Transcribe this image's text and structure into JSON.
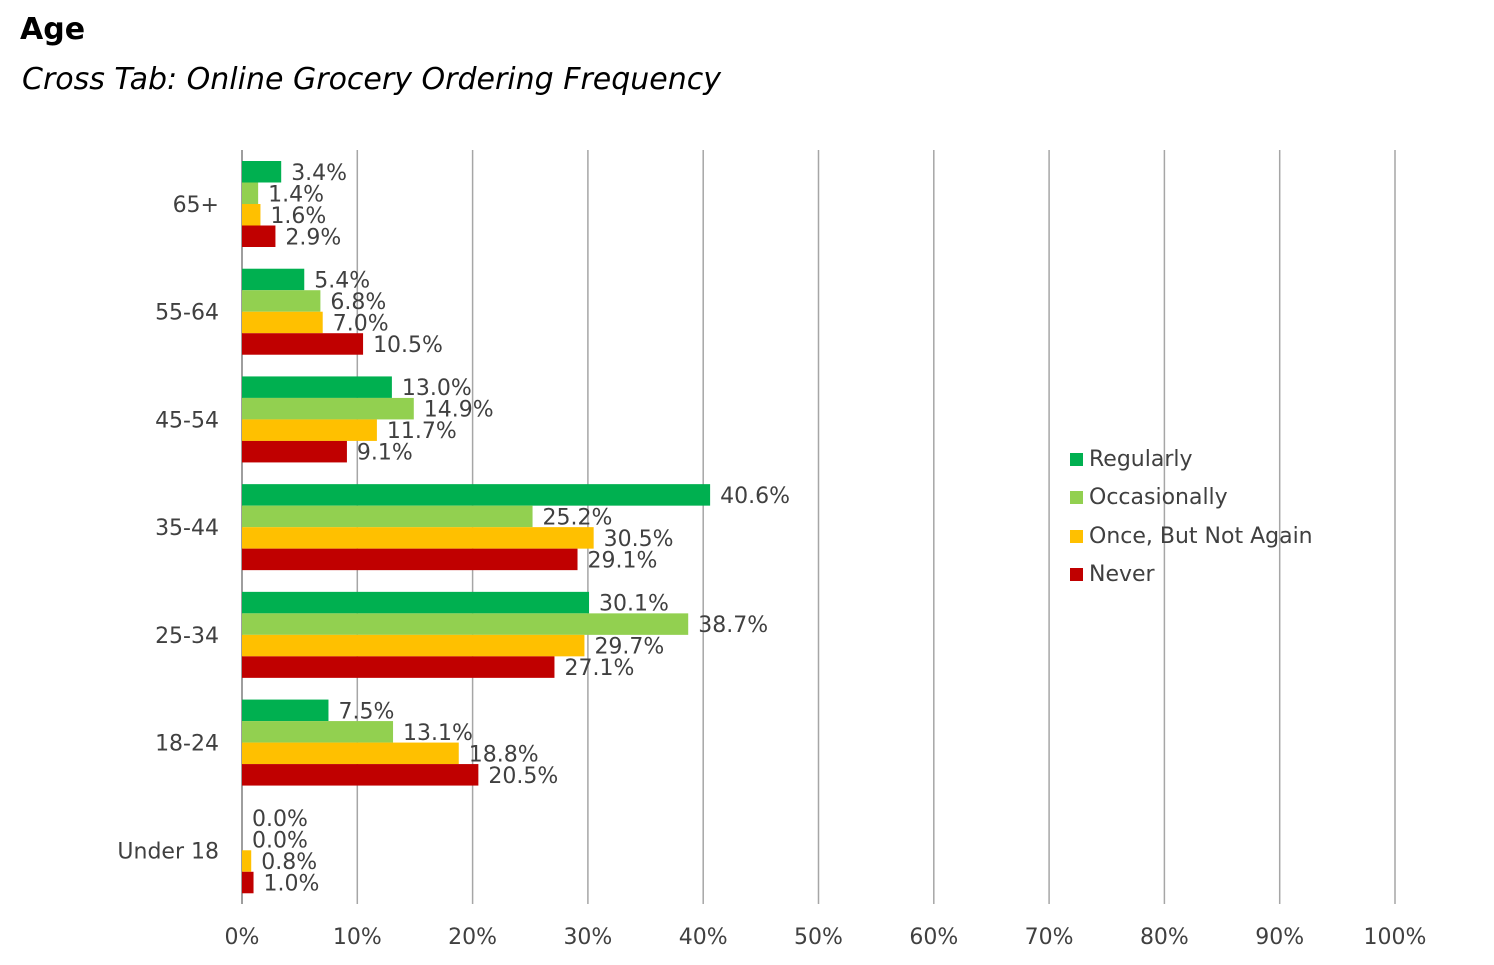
{
  "header": {
    "title": "Age",
    "subtitle": "Cross Tab: Online Grocery Ordering Frequency"
  },
  "chart_data": {
    "type": "bar",
    "orientation": "horizontal",
    "title": "Age",
    "subtitle": "Cross Tab: Online Grocery Ordering Frequency",
    "categories": [
      "65+",
      "55-64",
      "45-54",
      "35-44",
      "25-34",
      "18-24",
      "Under 18"
    ],
    "series": [
      {
        "name": "Regularly",
        "color": "#00b050",
        "values": [
          3.4,
          5.4,
          13.0,
          40.6,
          30.1,
          7.5,
          0.0
        ],
        "labels": [
          "3.4%",
          "5.4%",
          "13.0%",
          "40.6%",
          "30.1%",
          "7.5%",
          "0.0%"
        ]
      },
      {
        "name": "Occasionally",
        "color": "#92d050",
        "values": [
          1.4,
          6.8,
          14.9,
          25.2,
          38.7,
          13.1,
          0.0
        ],
        "labels": [
          "1.4%",
          "6.8%",
          "14.9%",
          "25.2%",
          "38.7%",
          "13.1%",
          "0.0%"
        ]
      },
      {
        "name": "Once, But Not Again",
        "color": "#ffc000",
        "values": [
          1.6,
          7.0,
          11.7,
          30.5,
          29.7,
          18.8,
          0.8
        ],
        "labels": [
          "1.6%",
          "7.0%",
          "11.7%",
          "30.5%",
          "29.7%",
          "18.8%",
          "0.8%"
        ]
      },
      {
        "name": "Never",
        "color": "#c00000",
        "values": [
          2.9,
          10.5,
          9.1,
          29.1,
          27.1,
          20.5,
          1.0
        ],
        "labels": [
          "2.9%",
          "10.5%",
          "9.1%",
          "29.1%",
          "27.1%",
          "20.5%",
          "1.0%"
        ]
      }
    ],
    "xlim": [
      0,
      100
    ],
    "x_ticks": [
      "0%",
      "10%",
      "20%",
      "30%",
      "40%",
      "50%",
      "60%",
      "70%",
      "80%",
      "90%",
      "100%"
    ],
    "grid": "vertical",
    "legend_position": "right"
  }
}
